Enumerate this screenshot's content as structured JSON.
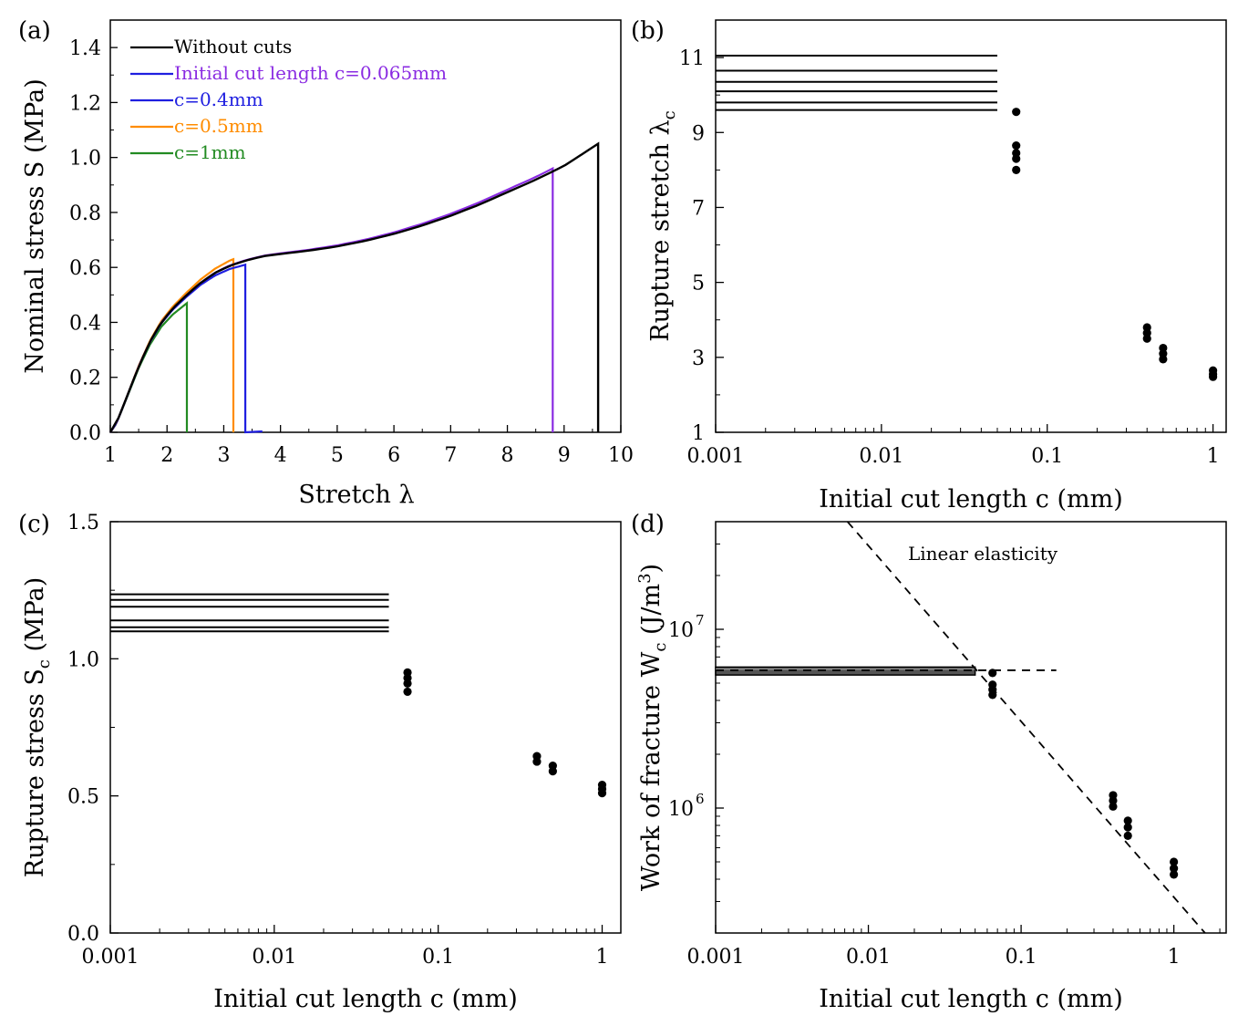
{
  "chart_data": [
    {
      "panel": "(a)",
      "type": "line",
      "xlabel": "Stretch λ",
      "ylabel": "Nominal stress S (MPa)",
      "xlim": [
        1,
        10
      ],
      "ylim": [
        0,
        1.5
      ],
      "x_ticks": [
        "1",
        "2",
        "3",
        "4",
        "5",
        "6",
        "7",
        "8",
        "9",
        "10"
      ],
      "y_ticks": [
        "0.0",
        "0.2",
        "0.4",
        "0.6",
        "0.8",
        "1.0",
        "1.2",
        "1.4"
      ],
      "legend_position": "top-left",
      "legend": [
        {
          "label": "Without cuts",
          "color": "#000000"
        },
        {
          "label": "Initial cut length c=0.065mm",
          "color": "#8a2be2"
        },
        {
          "label": "c=0.4mm",
          "color": "#1f1fe0"
        },
        {
          "label": "c=0.5mm",
          "color": "#ff8c00"
        },
        {
          "label": "c=1mm",
          "color": "#228b22"
        }
      ],
      "series": [
        {
          "name": "c=1mm",
          "color": "#228b22",
          "rupture_stretch": 2.35,
          "rupture_stress": 0.47
        },
        {
          "name": "c=0.5mm",
          "color": "#ff8c00",
          "rupture_stretch": 3.17,
          "rupture_stress": 0.63
        },
        {
          "name": "c=0.4mm",
          "color": "#1f1fe0",
          "rupture_stretch": 3.38,
          "rupture_stress": 0.61
        },
        {
          "name": "Initial cut length c=0.065mm",
          "color": "#8a2be2",
          "rupture_stretch": 8.8,
          "rupture_stress": 0.96
        },
        {
          "name": "Without cuts",
          "color": "#000000",
          "rupture_stretch": 9.6,
          "rupture_stress": 1.05
        }
      ],
      "master_curve": {
        "x": [
          1,
          1.1,
          1.2,
          1.35,
          1.5,
          1.7,
          1.9,
          2.1,
          2.35,
          2.6,
          2.85,
          3.1,
          3.4,
          3.7,
          4,
          4.5,
          5,
          5.5,
          6,
          6.5,
          7,
          7.5,
          8,
          8.5,
          9,
          9.6
        ],
        "y": [
          0,
          0.03,
          0.08,
          0.16,
          0.24,
          0.33,
          0.4,
          0.45,
          0.5,
          0.545,
          0.58,
          0.605,
          0.625,
          0.64,
          0.648,
          0.66,
          0.675,
          0.695,
          0.72,
          0.75,
          0.785,
          0.825,
          0.87,
          0.915,
          0.965,
          1.045
        ]
      }
    },
    {
      "panel": "(b)",
      "type": "scatter",
      "xscale": "log",
      "xlabel": "Initial cut length c (mm)",
      "ylabel": "Rupture stretch λ",
      "ylabel_subscript": "c",
      "xlim": [
        0.001,
        1.2
      ],
      "ylim": [
        1,
        12
      ],
      "x_ticks": [
        {
          "v": 0.001,
          "label": "0.001"
        },
        {
          "v": 0.01,
          "label": "0.01"
        },
        {
          "v": 0.1,
          "label": "0.1"
        },
        {
          "v": 1,
          "label": "1"
        }
      ],
      "y_ticks": [
        {
          "v": 1,
          "label": "1"
        },
        {
          "v": 3,
          "label": "3"
        },
        {
          "v": 5,
          "label": "5"
        },
        {
          "v": 7,
          "label": "7"
        },
        {
          "v": 9,
          "label": "9"
        },
        {
          "v": 11,
          "label": "11"
        }
      ],
      "uncut_lines": [
        9.6,
        9.8,
        10.1,
        10.35,
        10.65,
        11.05
      ],
      "uncut_line_xmax": 0.05,
      "points": [
        {
          "x": 0.065,
          "y": 9.55
        },
        {
          "x": 0.065,
          "y": 8.65
        },
        {
          "x": 0.065,
          "y": 8.45
        },
        {
          "x": 0.065,
          "y": 8.3
        },
        {
          "x": 0.065,
          "y": 8.0
        },
        {
          "x": 0.4,
          "y": 3.8
        },
        {
          "x": 0.4,
          "y": 3.65
        },
        {
          "x": 0.4,
          "y": 3.5
        },
        {
          "x": 0.5,
          "y": 3.25
        },
        {
          "x": 0.5,
          "y": 3.1
        },
        {
          "x": 0.5,
          "y": 2.95
        },
        {
          "x": 1,
          "y": 2.65
        },
        {
          "x": 1,
          "y": 2.55
        },
        {
          "x": 1,
          "y": 2.48
        }
      ]
    },
    {
      "panel": "(c)",
      "type": "scatter",
      "xscale": "log",
      "xlabel": "Initial cut length c (mm)",
      "ylabel": "Rupture stress S",
      "ylabel_subscript": "c",
      "ylabel_suffix": " (MPa)",
      "xlim": [
        0.001,
        1.3
      ],
      "ylim": [
        0,
        1.5
      ],
      "x_ticks": [
        {
          "v": 0.001,
          "label": "0.001"
        },
        {
          "v": 0.01,
          "label": "0.01"
        },
        {
          "v": 0.1,
          "label": "0.1"
        },
        {
          "v": 1,
          "label": "1"
        }
      ],
      "y_ticks": [
        {
          "v": 0,
          "label": "0.0"
        },
        {
          "v": 0.5,
          "label": "0.5"
        },
        {
          "v": 1,
          "label": "1.0"
        },
        {
          "v": 1.5,
          "label": "1.5"
        }
      ],
      "uncut_lines": [
        1.1,
        1.115,
        1.14,
        1.19,
        1.215,
        1.235
      ],
      "uncut_line_xmax": 0.05,
      "points": [
        {
          "x": 0.065,
          "y": 0.95
        },
        {
          "x": 0.065,
          "y": 0.93
        },
        {
          "x": 0.065,
          "y": 0.91
        },
        {
          "x": 0.065,
          "y": 0.88
        },
        {
          "x": 0.4,
          "y": 0.645
        },
        {
          "x": 0.4,
          "y": 0.625
        },
        {
          "x": 0.5,
          "y": 0.61
        },
        {
          "x": 0.5,
          "y": 0.59
        },
        {
          "x": 1,
          "y": 0.54
        },
        {
          "x": 1,
          "y": 0.525
        },
        {
          "x": 1,
          "y": 0.51
        }
      ]
    },
    {
      "panel": "(d)",
      "type": "scatter",
      "xscale": "log",
      "yscale": "log",
      "xlabel": "Initial cut length c (mm)",
      "ylabel": "Work of fracture W",
      "ylabel_subscript": "c",
      "ylabel_suffix": " (J/m",
      "ylabel_superscript": "3",
      "ylabel_end": ")",
      "xlim": [
        0.001,
        2.2
      ],
      "ylim": [
        200000,
        40000000
      ],
      "x_ticks": [
        {
          "v": 0.001,
          "label": "0.001"
        },
        {
          "v": 0.01,
          "label": "0.01"
        },
        {
          "v": 0.1,
          "label": "0.1"
        },
        {
          "v": 1,
          "label": "1"
        }
      ],
      "y_ticks": [
        {
          "v": 1000000,
          "base": "10",
          "exp": "6"
        },
        {
          "v": 10000000,
          "base": "10",
          "exp": "7"
        }
      ],
      "annotation": "Linear elasticity",
      "uncut_band": [
        5550000,
        6150000
      ],
      "uncut_line_xmax": 0.05,
      "dashed_horizontal": {
        "y": 5900000,
        "x": [
          0.001,
          0.17
        ]
      },
      "dashed_slope_line": {
        "x": [
          0.0073,
          1.6
        ],
        "y": [
          40000000,
          200000
        ]
      },
      "points": [
        {
          "x": 0.065,
          "y": 5700000
        },
        {
          "x": 0.065,
          "y": 4900000
        },
        {
          "x": 0.065,
          "y": 4600000
        },
        {
          "x": 0.065,
          "y": 4300000
        },
        {
          "x": 0.4,
          "y": 1180000
        },
        {
          "x": 0.4,
          "y": 1100000
        },
        {
          "x": 0.4,
          "y": 1020000
        },
        {
          "x": 0.5,
          "y": 850000
        },
        {
          "x": 0.5,
          "y": 780000
        },
        {
          "x": 0.5,
          "y": 700000
        },
        {
          "x": 1,
          "y": 500000
        },
        {
          "x": 1,
          "y": 460000
        },
        {
          "x": 1,
          "y": 425000
        }
      ]
    }
  ]
}
